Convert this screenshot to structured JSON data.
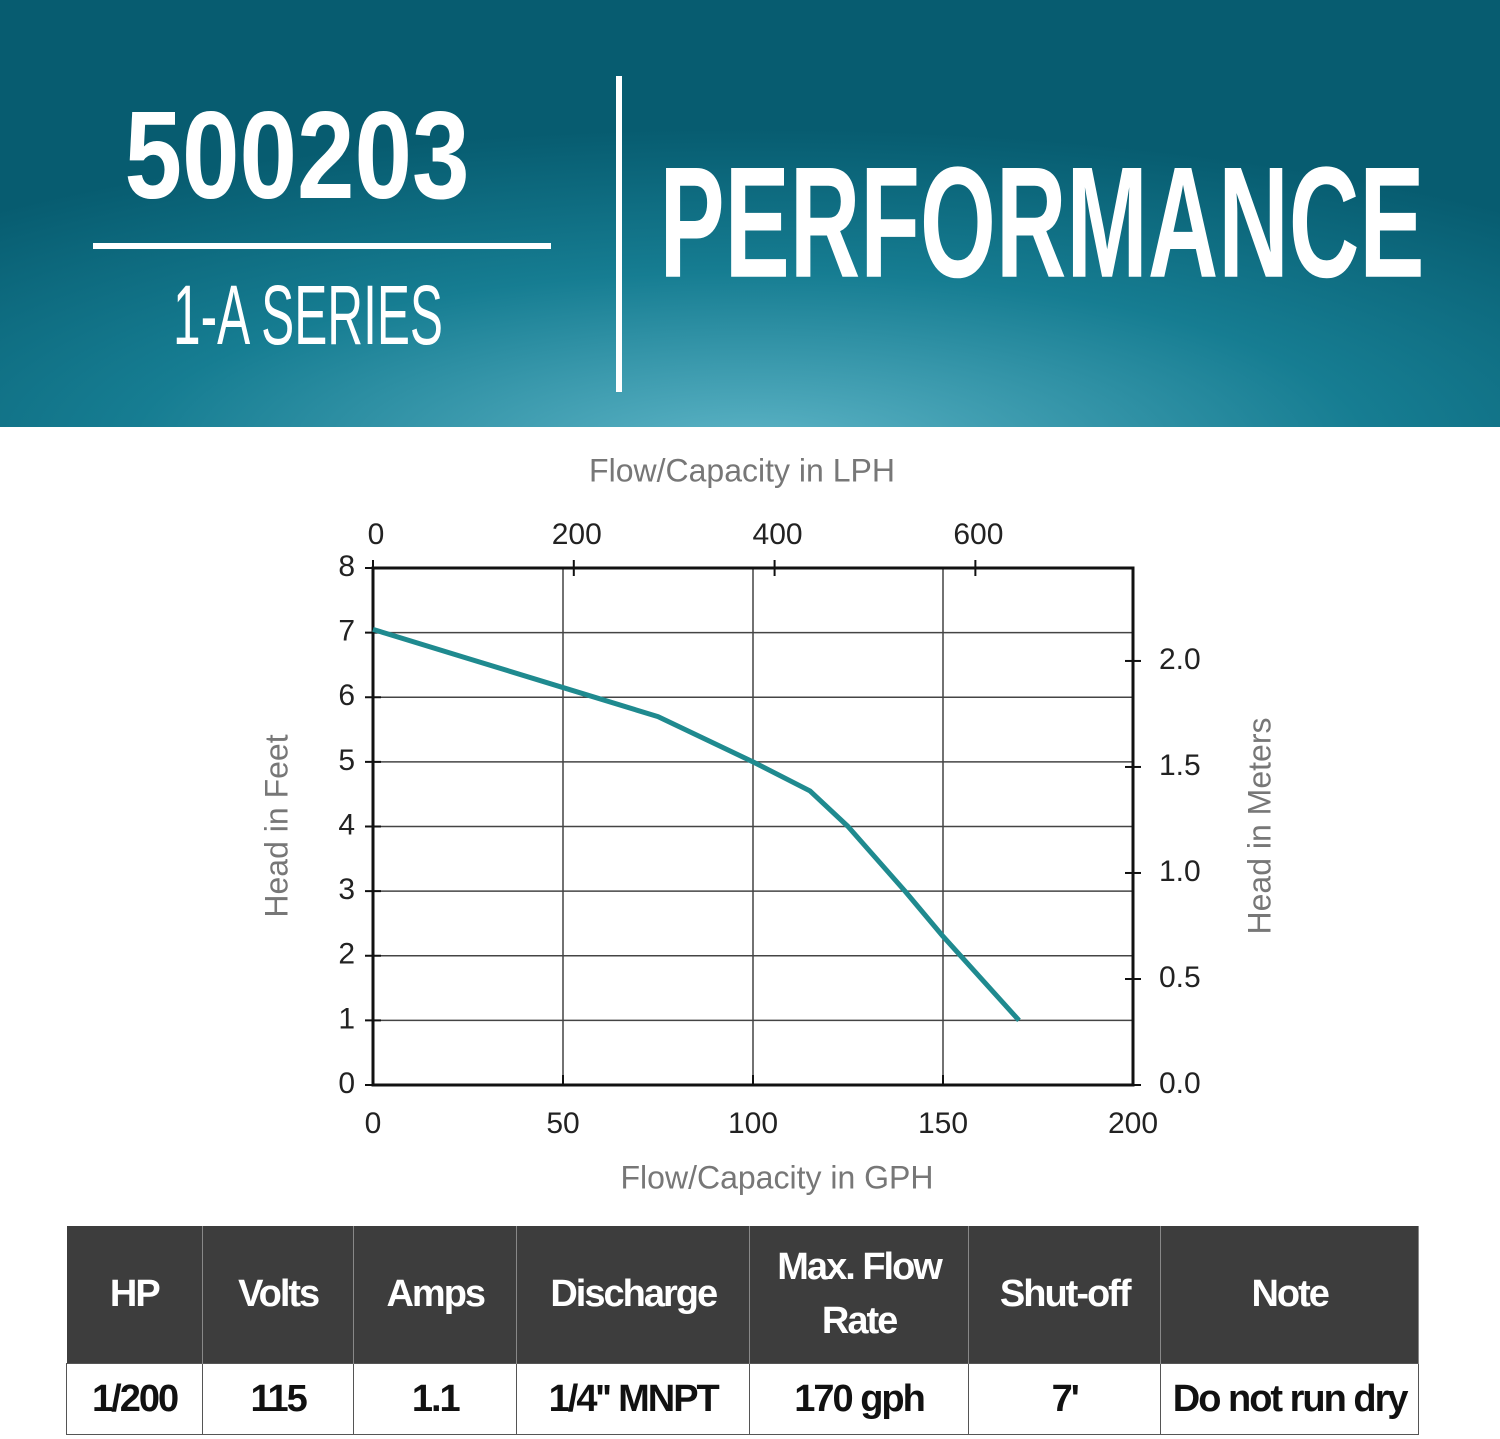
{
  "header": {
    "model": "500203",
    "series": "1-A SERIES",
    "title": "PERFORMANCE"
  },
  "chart_data": {
    "type": "line",
    "x_label": "Flow/Capacity in GPH",
    "x2_label": "Flow/Capacity in LPH",
    "y_label": "Head in Feet",
    "y2_label": "Head in Meters",
    "x": [
      0,
      25,
      50,
      75,
      100,
      115,
      125,
      140,
      150,
      170
    ],
    "series": [
      {
        "name": "500203",
        "color": "#1f8a8f",
        "values": [
          7.05,
          6.6,
          6.15,
          5.7,
          5.0,
          4.55,
          4.0,
          3.0,
          2.3,
          1.0
        ]
      }
    ],
    "xlim": [
      0,
      200
    ],
    "xticks": [
      0,
      50,
      100,
      150,
      200
    ],
    "x2lim": [
      0,
      757
    ],
    "x2ticks": [
      0,
      200,
      400,
      600
    ],
    "ylim": [
      0,
      8
    ],
    "yticks": [
      0,
      1,
      2,
      3,
      4,
      5,
      6,
      7,
      8
    ],
    "y2lim": [
      0,
      2.4384
    ],
    "y2ticks": [
      {
        "value": 0,
        "label": "0.0"
      },
      {
        "value": 0.5,
        "label": "0.5"
      },
      {
        "value": 1,
        "label": "1.0"
      },
      {
        "value": 1.5,
        "label": "1.5"
      },
      {
        "value": 2,
        "label": "2.0"
      }
    ],
    "grid": true
  },
  "table": {
    "header": [
      "HP",
      "Volts",
      "Amps",
      "Discharge",
      "Max. Flow Rate",
      "Shut-off",
      "Note"
    ],
    "rows": [
      [
        "1/200",
        "115",
        "1.1",
        "1/4'' MNPT",
        "170 gph",
        "7'",
        "Do not run dry"
      ]
    ]
  }
}
